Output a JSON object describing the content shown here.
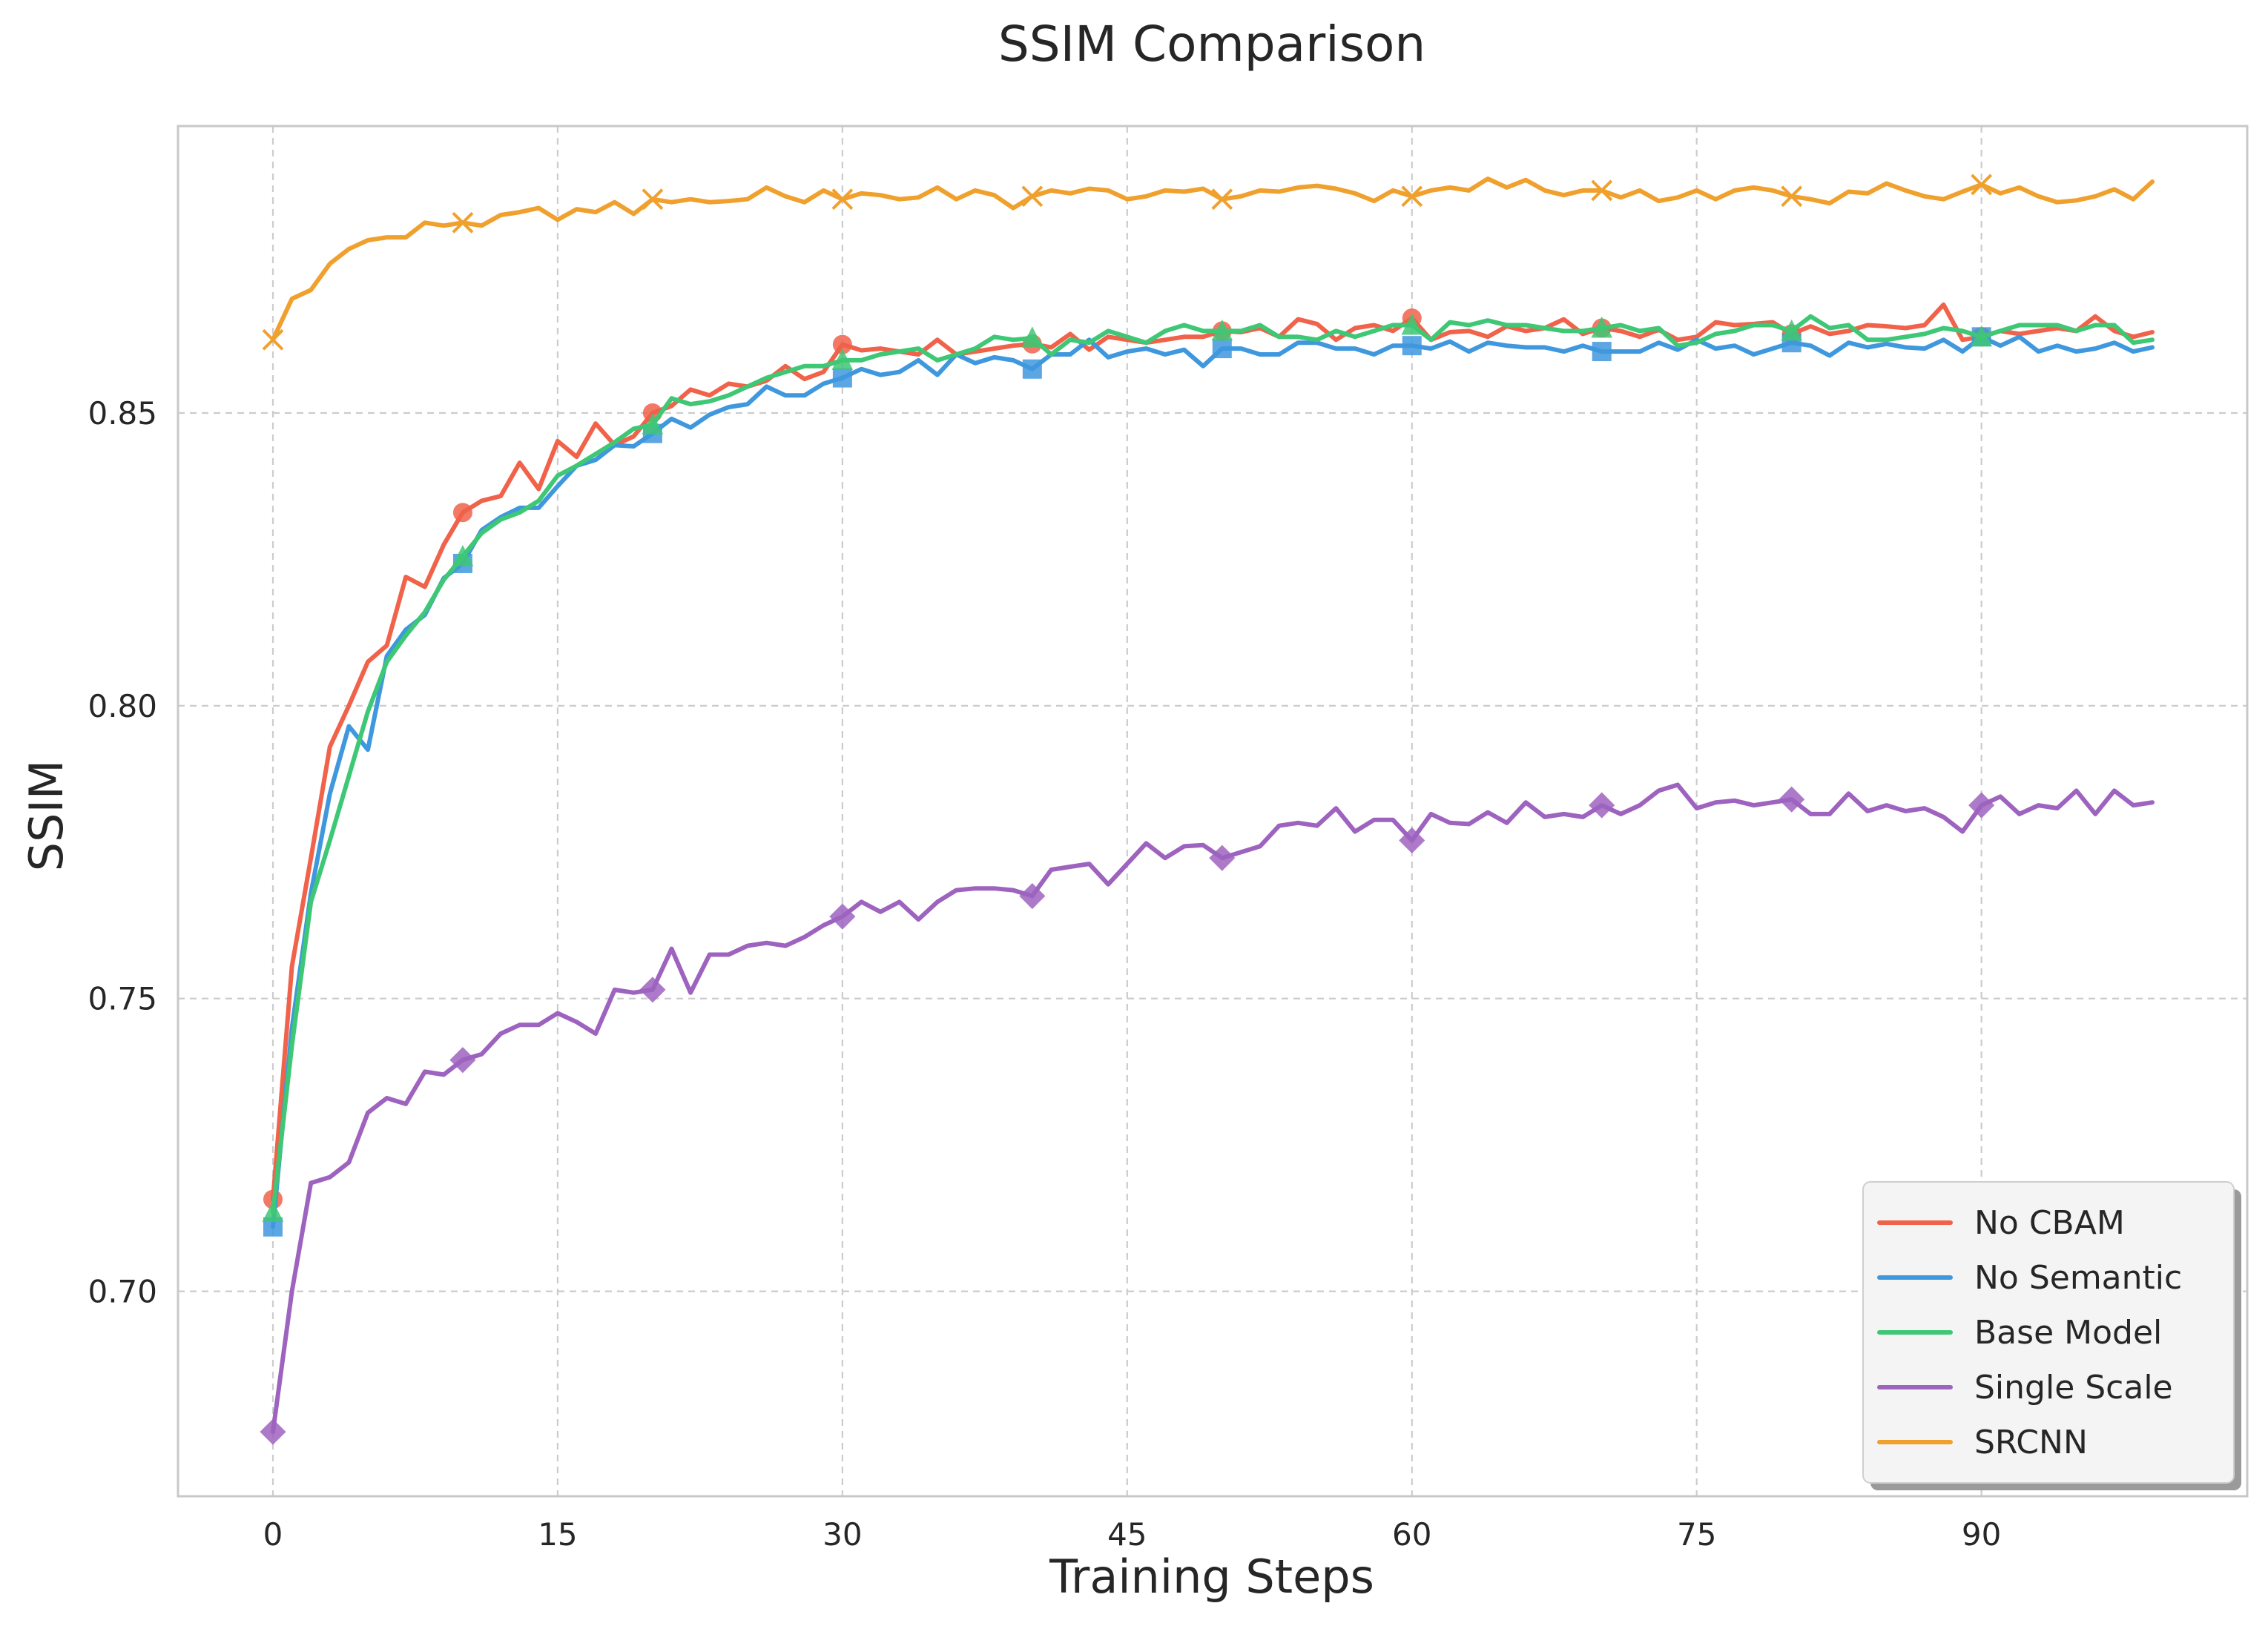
{
  "chart_data": {
    "type": "line",
    "title": "SSIM Comparison",
    "xlabel": "Training Steps",
    "ylabel": "SSIM",
    "xlim": [
      -5,
      104
    ],
    "ylim": [
      0.665,
      0.899
    ],
    "xticks": [
      0,
      15,
      30,
      45,
      60,
      75,
      90
    ],
    "yticks": [
      0.7,
      0.75,
      0.8,
      0.85
    ],
    "ytick_labels": [
      "0.70",
      "0.75",
      "0.80",
      "0.85"
    ],
    "grid": true,
    "legend_position": "bottom-right",
    "marker_every": 10,
    "series": [
      {
        "name": "No CBAM",
        "color": "#f0624a",
        "marker": "circle",
        "values": [
          0.7157,
          0.7555,
          0.774,
          0.793,
          0.8,
          0.8075,
          0.8103,
          0.822,
          0.8203,
          0.8275,
          0.833,
          0.835,
          0.8358,
          0.8415,
          0.837,
          0.8452,
          0.8425,
          0.8482,
          0.8445,
          0.846,
          0.85,
          0.8512,
          0.854,
          0.853,
          0.855,
          0.8545,
          0.8555,
          0.858,
          0.8558,
          0.857,
          0.8617,
          0.8607,
          0.861,
          0.8605,
          0.86,
          0.8625,
          0.86,
          0.8605,
          0.861,
          0.8615,
          0.8618,
          0.8612,
          0.8635,
          0.8608,
          0.863,
          0.8625,
          0.862,
          0.8625,
          0.863,
          0.863,
          0.864,
          0.8638,
          0.8645,
          0.863,
          0.866,
          0.8652,
          0.8625,
          0.8645,
          0.865,
          0.864,
          0.8662,
          0.8625,
          0.8638,
          0.864,
          0.863,
          0.8648,
          0.864,
          0.8645,
          0.866,
          0.8635,
          0.8645,
          0.864,
          0.863,
          0.8642,
          0.8625,
          0.863,
          0.8655,
          0.865,
          0.8652,
          0.8655,
          0.8635,
          0.8648,
          0.8635,
          0.864,
          0.865,
          0.8648,
          0.8645,
          0.865,
          0.8685,
          0.8625,
          0.863,
          0.864,
          0.8635,
          0.864,
          0.8645,
          0.864,
          0.8665,
          0.864,
          0.863,
          0.8638
        ]
      },
      {
        "name": "No Semantic",
        "color": "#3f98de",
        "marker": "square",
        "values": [
          0.711,
          0.745,
          0.768,
          0.785,
          0.7965,
          0.7925,
          0.8085,
          0.813,
          0.8155,
          0.8218,
          0.8243,
          0.83,
          0.8322,
          0.8338,
          0.8338,
          0.8375,
          0.841,
          0.842,
          0.8445,
          0.8443,
          0.8465,
          0.849,
          0.8475,
          0.8497,
          0.851,
          0.8515,
          0.8545,
          0.853,
          0.853,
          0.855,
          0.856,
          0.8575,
          0.8565,
          0.857,
          0.859,
          0.8565,
          0.86,
          0.8585,
          0.8595,
          0.859,
          0.8575,
          0.86,
          0.86,
          0.8625,
          0.8595,
          0.8605,
          0.861,
          0.86,
          0.8608,
          0.858,
          0.861,
          0.861,
          0.86,
          0.86,
          0.862,
          0.862,
          0.861,
          0.861,
          0.86,
          0.8615,
          0.8615,
          0.861,
          0.8622,
          0.8605,
          0.862,
          0.8615,
          0.8612,
          0.8612,
          0.8605,
          0.8615,
          0.8605,
          0.8605,
          0.8605,
          0.862,
          0.8608,
          0.8625,
          0.861,
          0.8615,
          0.86,
          0.861,
          0.862,
          0.8615,
          0.8598,
          0.862,
          0.8612,
          0.8618,
          0.8612,
          0.861,
          0.8625,
          0.8605,
          0.863,
          0.8615,
          0.863,
          0.8605,
          0.8615,
          0.8605,
          0.861,
          0.862,
          0.8605,
          0.8612
        ]
      },
      {
        "name": "Base Model",
        "color": "#3ec774",
        "marker": "triangle",
        "values": [
          0.7135,
          0.742,
          0.7665,
          0.777,
          0.788,
          0.799,
          0.8075,
          0.812,
          0.816,
          0.8215,
          0.8255,
          0.8295,
          0.8318,
          0.833,
          0.835,
          0.8393,
          0.841,
          0.843,
          0.845,
          0.8473,
          0.848,
          0.8525,
          0.8515,
          0.852,
          0.853,
          0.8545,
          0.856,
          0.857,
          0.858,
          0.858,
          0.859,
          0.859,
          0.86,
          0.8605,
          0.861,
          0.859,
          0.86,
          0.861,
          0.863,
          0.8625,
          0.8628,
          0.86,
          0.8625,
          0.862,
          0.864,
          0.863,
          0.862,
          0.864,
          0.865,
          0.864,
          0.864,
          0.864,
          0.865,
          0.863,
          0.863,
          0.8625,
          0.864,
          0.863,
          0.864,
          0.865,
          0.865,
          0.8625,
          0.8655,
          0.865,
          0.8658,
          0.865,
          0.865,
          0.8645,
          0.864,
          0.864,
          0.8645,
          0.865,
          0.864,
          0.8645,
          0.8615,
          0.862,
          0.8635,
          0.864,
          0.865,
          0.865,
          0.864,
          0.8665,
          0.8645,
          0.865,
          0.8625,
          0.8625,
          0.863,
          0.8635,
          0.8645,
          0.864,
          0.863,
          0.864,
          0.865,
          0.865,
          0.865,
          0.864,
          0.865,
          0.865,
          0.862,
          0.8625
        ]
      },
      {
        "name": "Single Scale",
        "color": "#9d63bf",
        "marker": "diamond",
        "values": [
          0.676,
          0.7,
          0.7185,
          0.7195,
          0.722,
          0.7305,
          0.733,
          0.732,
          0.7375,
          0.737,
          0.7395,
          0.7405,
          0.744,
          0.7455,
          0.7455,
          0.7475,
          0.746,
          0.744,
          0.7515,
          0.751,
          0.7515,
          0.7585,
          0.751,
          0.7575,
          0.7575,
          0.759,
          0.7595,
          0.759,
          0.7605,
          0.7625,
          0.764,
          0.7665,
          0.7648,
          0.7665,
          0.7635,
          0.7665,
          0.7685,
          0.7688,
          0.7688,
          0.7685,
          0.7675,
          0.772,
          0.7725,
          0.773,
          0.7695,
          0.773,
          0.7765,
          0.774,
          0.776,
          0.7762,
          0.774,
          0.775,
          0.776,
          0.7795,
          0.78,
          0.7795,
          0.7825,
          0.7785,
          0.7805,
          0.7805,
          0.777,
          0.7815,
          0.78,
          0.7798,
          0.7818,
          0.78,
          0.7835,
          0.781,
          0.7815,
          0.781,
          0.783,
          0.7815,
          0.783,
          0.7855,
          0.7865,
          0.7825,
          0.7835,
          0.7838,
          0.783,
          0.7835,
          0.784,
          0.7815,
          0.7815,
          0.785,
          0.782,
          0.783,
          0.782,
          0.7825,
          0.781,
          0.7785,
          0.783,
          0.7845,
          0.7815,
          0.783,
          0.7825,
          0.7855,
          0.7815,
          0.7855,
          0.783,
          0.7835
        ]
      },
      {
        "name": "SRCNN",
        "color": "#f0a02d",
        "marker": "x",
        "values": [
          0.8625,
          0.8695,
          0.871,
          0.8755,
          0.878,
          0.8795,
          0.88,
          0.88,
          0.8825,
          0.882,
          0.8825,
          0.882,
          0.8838,
          0.8843,
          0.885,
          0.883,
          0.8848,
          0.8843,
          0.886,
          0.884,
          0.8865,
          0.886,
          0.8865,
          0.886,
          0.8862,
          0.8865,
          0.8885,
          0.887,
          0.886,
          0.888,
          0.8865,
          0.8875,
          0.8872,
          0.8865,
          0.8868,
          0.8885,
          0.8865,
          0.888,
          0.8872,
          0.885,
          0.887,
          0.888,
          0.8875,
          0.8883,
          0.888,
          0.8865,
          0.887,
          0.888,
          0.8878,
          0.8883,
          0.8865,
          0.887,
          0.888,
          0.8878,
          0.8885,
          0.8888,
          0.8883,
          0.8875,
          0.8862,
          0.888,
          0.887,
          0.888,
          0.8885,
          0.888,
          0.89,
          0.8885,
          0.8898,
          0.888,
          0.8872,
          0.888,
          0.888,
          0.8868,
          0.888,
          0.8862,
          0.8868,
          0.888,
          0.8865,
          0.888,
          0.8885,
          0.888,
          0.887,
          0.8865,
          0.8858,
          0.8878,
          0.8875,
          0.8892,
          0.888,
          0.887,
          0.8865,
          0.8878,
          0.889,
          0.8875,
          0.8885,
          0.887,
          0.886,
          0.8863,
          0.887,
          0.8882,
          0.8865,
          0.8895
        ]
      }
    ]
  }
}
